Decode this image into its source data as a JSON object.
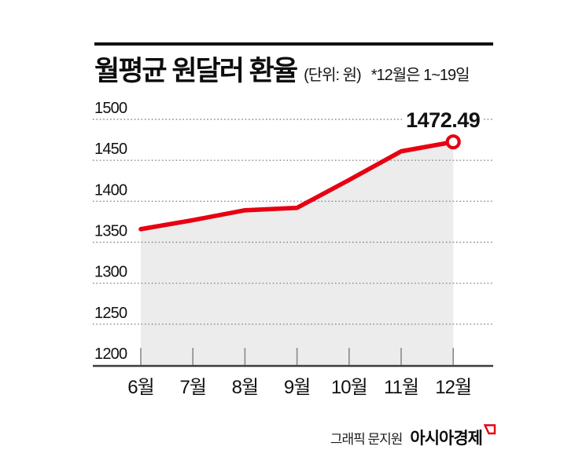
{
  "header": {
    "title": "월평균 원달러 환율",
    "unit_label": "(단위: 원)",
    "note": "*12월은 1~19일"
  },
  "footer": {
    "credit": "그래픽 문지원",
    "brand": "아시아경제"
  },
  "colors": {
    "line": "#e60012",
    "marker_fill": "#ffffff",
    "area": "#ececec",
    "grid": "#8a8a8a",
    "axis": "#3c3c3c",
    "tick": "#8a8a8a",
    "text": "#111111",
    "brand_mark": "#e60012"
  },
  "chart_data": {
    "type": "line",
    "title": "월평균 원달러 환율",
    "xlabel": "",
    "ylabel": "원",
    "categories": [
      "6월",
      "7월",
      "8월",
      "9월",
      "10월",
      "11월",
      "12월"
    ],
    "values": [
      1366,
      1377,
      1389,
      1392,
      1426,
      1461,
      1472.49
    ],
    "ylim": [
      1200,
      1500
    ],
    "y_ticks": [
      1200,
      1250,
      1300,
      1350,
      1400,
      1450,
      1500
    ],
    "grid": "horizontal-dotted",
    "legend": "none",
    "area_fill": true,
    "annotation": {
      "label": "1472.49",
      "point_index": 6
    }
  }
}
